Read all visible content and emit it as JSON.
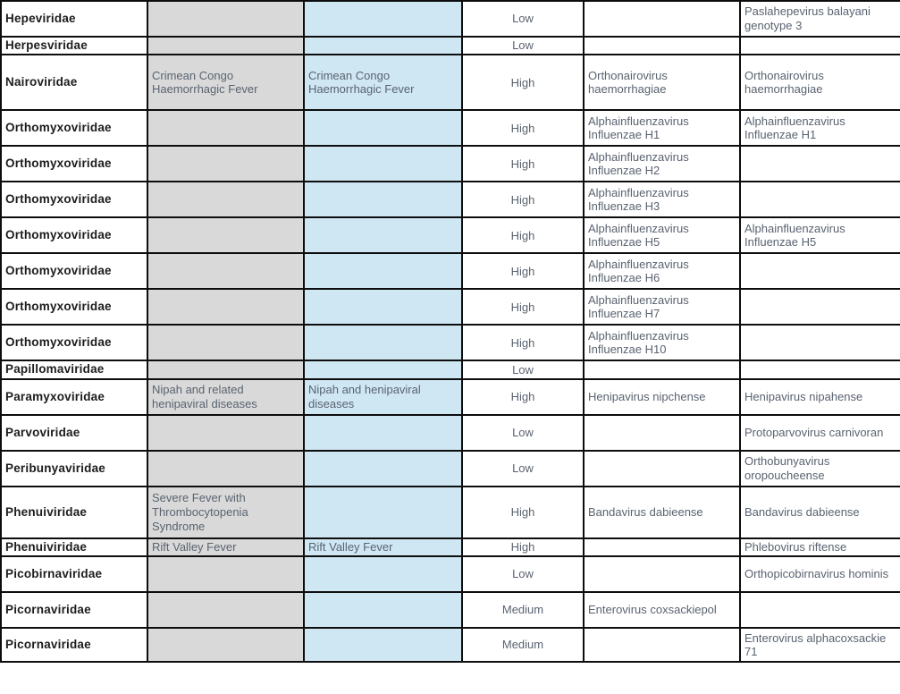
{
  "document": {
    "description": "Virus family prioritisation table (cropped page, no header row visible)",
    "columns_semantic": [
      "family",
      "disease_priority",
      "disease_secondary",
      "risk_level",
      "virus_species_left",
      "virus_species_right"
    ]
  },
  "colors": {
    "column_gray": "#d9d9d9",
    "column_blue": "#cfe7f3",
    "border_black": "#0d0d0d",
    "body_text": "#5a6370",
    "family_text": "#1c1c1c"
  },
  "table": {
    "rows": [
      {
        "family": "Hepeviridae",
        "disease_a": "",
        "disease_b": "",
        "risk": "Low",
        "virus_a": "",
        "virus_b": "Paslahepevirus balayani genotype 3"
      },
      {
        "family": "Herpesviridae",
        "disease_a": "",
        "disease_b": "",
        "risk": "Low",
        "virus_a": "",
        "virus_b": ""
      },
      {
        "family": "Nairoviridae",
        "disease_a": "Crimean Congo Haemorrhagic Fever",
        "disease_b": "Crimean Congo Haemorrhagic Fever",
        "risk": "High",
        "virus_a": "Orthonairovirus haemorrhagiae",
        "virus_b": "Orthonairovirus haemorrhagiae"
      },
      {
        "family": "Orthomyxoviridae",
        "disease_a": "",
        "disease_b": "",
        "risk": "High",
        "virus_a": "Alphainfluenzavirus Influenzae H1",
        "virus_b": "Alphainfluenzavirus Influenzae H1"
      },
      {
        "family": "Orthomyxoviridae",
        "disease_a": "",
        "disease_b": "",
        "risk": "High",
        "virus_a": "Alphainfluenzavirus Influenzae H2",
        "virus_b": ""
      },
      {
        "family": "Orthomyxoviridae",
        "disease_a": "",
        "disease_b": "",
        "risk": "High",
        "virus_a": "Alphainfluenzavirus Influenzae H3",
        "virus_b": ""
      },
      {
        "family": "Orthomyxoviridae",
        "disease_a": "",
        "disease_b": "",
        "risk": "High",
        "virus_a": "Alphainfluenzavirus Influenzae H5",
        "virus_b": "Alphainfluenzavirus Influenzae H5"
      },
      {
        "family": "Orthomyxoviridae",
        "disease_a": "",
        "disease_b": "",
        "risk": "High",
        "virus_a": "Alphainfluenzavirus Influenzae H6",
        "virus_b": ""
      },
      {
        "family": "Orthomyxoviridae",
        "disease_a": "",
        "disease_b": "",
        "risk": "High",
        "virus_a": "Alphainfluenzavirus Influenzae H7",
        "virus_b": ""
      },
      {
        "family": "Orthomyxoviridae",
        "disease_a": "",
        "disease_b": "",
        "risk": "High",
        "virus_a": "Alphainfluenzavirus Influenzae H10",
        "virus_b": ""
      },
      {
        "family": "Papillomaviridae",
        "disease_a": "",
        "disease_b": "",
        "risk": "Low",
        "virus_a": "",
        "virus_b": ""
      },
      {
        "family": "Paramyxoviridae",
        "disease_a": "Nipah and related henipaviral diseases",
        "disease_b": "Nipah and henipaviral diseases",
        "risk": "High",
        "virus_a": "Henipavirus nipchense",
        "virus_b": "Henipavirus nipahense"
      },
      {
        "family": "Parvoviridae",
        "disease_a": "",
        "disease_b": "",
        "risk": "Low",
        "virus_a": "",
        "virus_b": "Protoparvovirus carnivoran"
      },
      {
        "family": "Peribunyaviridae",
        "disease_a": "",
        "disease_b": "",
        "risk": "Low",
        "virus_a": "",
        "virus_b": "Orthobunyavirus oropoucheense"
      },
      {
        "family": "Phenuiviridae",
        "disease_a": "Severe Fever with Thrombocytopenia Syndrome",
        "disease_b": "",
        "risk": "High",
        "virus_a": "Bandavirus dabieense",
        "virus_b": "Bandavirus dabieense"
      },
      {
        "family": "Phenuiviridae",
        "disease_a": "Rift Valley Fever",
        "disease_b": "Rift Valley Fever",
        "risk": "High",
        "virus_a": "",
        "virus_b": "Phlebovirus riftense"
      },
      {
        "family": "Picobirnaviridae",
        "disease_a": "",
        "disease_b": "",
        "risk": "Low",
        "virus_a": "",
        "virus_b": "Orthopicobirnavirus hominis"
      },
      {
        "family": "Picornaviridae",
        "disease_a": "",
        "disease_b": "",
        "risk": "Medium",
        "virus_a": "Enterovirus coxsackiepol",
        "virus_b": ""
      },
      {
        "family": "Picornaviridae",
        "disease_a": "",
        "disease_b": "",
        "risk": "Medium",
        "virus_a": "",
        "virus_b": "Enterovirus alphacoxsackie 71"
      }
    ]
  }
}
